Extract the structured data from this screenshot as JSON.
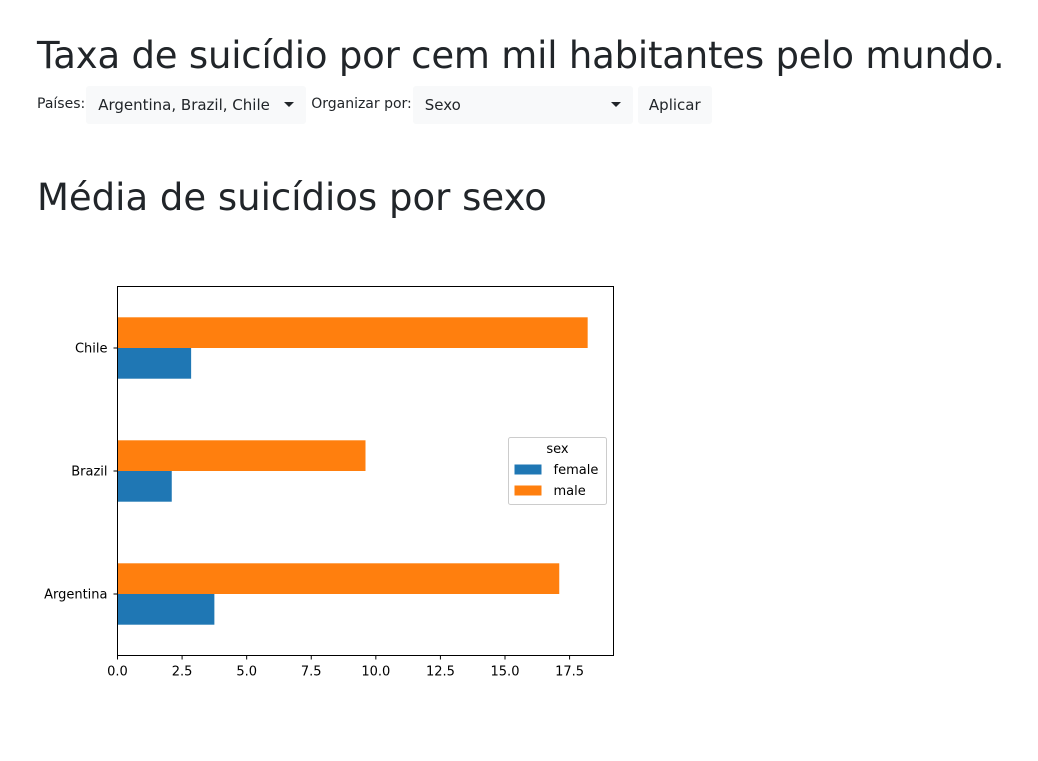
{
  "header": {
    "title": "Taxa de suicídio por cem mil habitantes pelo mundo."
  },
  "filters": {
    "countries_label": "Países:",
    "countries_value": "Argentina, Brazil, Chile",
    "orderby_label": "Organizar por:",
    "orderby_value": "Sexo",
    "apply_label": "Aplicar"
  },
  "section": {
    "title": "Média de suicídios por sexo"
  },
  "chart_data": {
    "type": "bar",
    "orientation": "horizontal",
    "categories": [
      "Argentina",
      "Brazil",
      "Chile"
    ],
    "series": [
      {
        "name": "female",
        "values": [
          3.75,
          2.1,
          2.85
        ],
        "color": "#1f77b4"
      },
      {
        "name": "male",
        "values": [
          17.1,
          9.6,
          18.2
        ],
        "color": "#ff7f0e"
      }
    ],
    "xlim": [
      0,
      19.2
    ],
    "xticks": [
      "0.0",
      "2.5",
      "5.0",
      "7.5",
      "10.0",
      "12.5",
      "15.0",
      "17.5"
    ],
    "legend_title": "sex",
    "legend_position": "center-right",
    "grid": false
  }
}
